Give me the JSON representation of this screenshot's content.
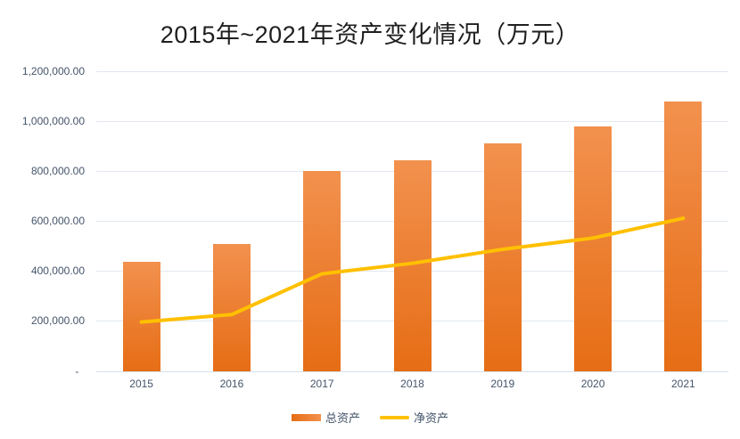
{
  "chart_data": {
    "type": "bar",
    "subtype": "bar-line-combo",
    "title": "2015年~2021年资产变化情况（万元）",
    "categories": [
      "2015",
      "2016",
      "2017",
      "2018",
      "2019",
      "2020",
      "2021"
    ],
    "series": [
      {
        "name": "总资产",
        "type": "bar",
        "values": [
          437000,
          510000,
          800000,
          843000,
          912000,
          978000,
          1078000
        ]
      },
      {
        "name": "净资产",
        "type": "line",
        "values": [
          197000,
          227000,
          390000,
          432000,
          488000,
          533000,
          612000
        ]
      }
    ],
    "xlabel": "",
    "ylabel": "",
    "ylim": [
      0,
      1200000
    ],
    "yticks": [
      {
        "value": 1200000,
        "label": "1,200,000.00"
      },
      {
        "value": 1000000,
        "label": "1,000,000.00"
      },
      {
        "value": 800000,
        "label": "800,000.00"
      },
      {
        "value": 600000,
        "label": "600,000.00"
      },
      {
        "value": 400000,
        "label": "400,000.00"
      },
      {
        "value": 200000,
        "label": "200,000.00"
      },
      {
        "value": 0,
        "label": "-  "
      }
    ],
    "grid": true,
    "legend_position": "bottom"
  },
  "colors": {
    "bar_gradient_top": "#F2914E",
    "bar_gradient_bottom": "#E66D15",
    "line": "#FFC000",
    "axis_text": "#44546A",
    "title_text": "#1F1F1F",
    "gridline": "#E2E8EF",
    "axis_line": "#D8DEE7"
  }
}
